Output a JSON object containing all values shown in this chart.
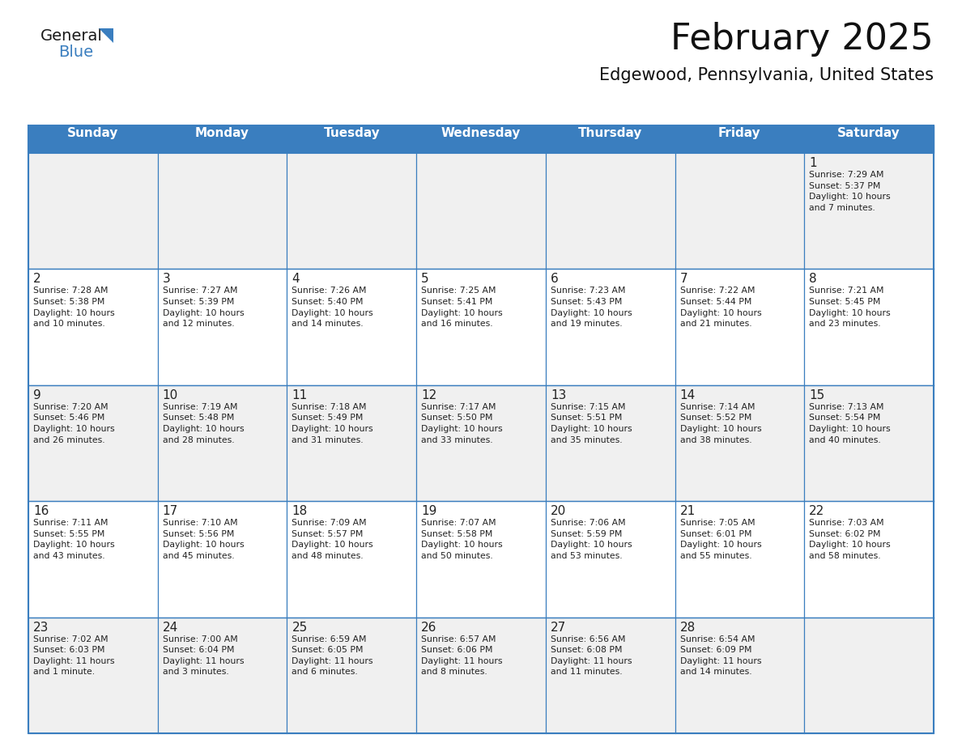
{
  "title": "February 2025",
  "subtitle": "Edgewood, Pennsylvania, United States",
  "header_bg": "#3a7ebf",
  "header_text": "#ffffff",
  "header_days": [
    "Sunday",
    "Monday",
    "Tuesday",
    "Wednesday",
    "Thursday",
    "Friday",
    "Saturday"
  ],
  "cell_bg_light": "#f0f0f0",
  "cell_bg_white": "#ffffff",
  "cell_text": "#222222",
  "border_color": "#3a7ebf",
  "title_fontsize": 32,
  "subtitle_fontsize": 15,
  "day_header_fontsize": 11,
  "cell_number_fontsize": 11,
  "cell_info_fontsize": 7.8,
  "logo_general_fontsize": 14,
  "logo_blue_fontsize": 14,
  "logo_color": "#1a1a1a",
  "logo_blue_color": "#3a7ebf",
  "weeks": [
    [
      {
        "day": "",
        "info": ""
      },
      {
        "day": "",
        "info": ""
      },
      {
        "day": "",
        "info": ""
      },
      {
        "day": "",
        "info": ""
      },
      {
        "day": "",
        "info": ""
      },
      {
        "day": "",
        "info": ""
      },
      {
        "day": "1",
        "info": "Sunrise: 7:29 AM\nSunset: 5:37 PM\nDaylight: 10 hours\nand 7 minutes."
      }
    ],
    [
      {
        "day": "2",
        "info": "Sunrise: 7:28 AM\nSunset: 5:38 PM\nDaylight: 10 hours\nand 10 minutes."
      },
      {
        "day": "3",
        "info": "Sunrise: 7:27 AM\nSunset: 5:39 PM\nDaylight: 10 hours\nand 12 minutes."
      },
      {
        "day": "4",
        "info": "Sunrise: 7:26 AM\nSunset: 5:40 PM\nDaylight: 10 hours\nand 14 minutes."
      },
      {
        "day": "5",
        "info": "Sunrise: 7:25 AM\nSunset: 5:41 PM\nDaylight: 10 hours\nand 16 minutes."
      },
      {
        "day": "6",
        "info": "Sunrise: 7:23 AM\nSunset: 5:43 PM\nDaylight: 10 hours\nand 19 minutes."
      },
      {
        "day": "7",
        "info": "Sunrise: 7:22 AM\nSunset: 5:44 PM\nDaylight: 10 hours\nand 21 minutes."
      },
      {
        "day": "8",
        "info": "Sunrise: 7:21 AM\nSunset: 5:45 PM\nDaylight: 10 hours\nand 23 minutes."
      }
    ],
    [
      {
        "day": "9",
        "info": "Sunrise: 7:20 AM\nSunset: 5:46 PM\nDaylight: 10 hours\nand 26 minutes."
      },
      {
        "day": "10",
        "info": "Sunrise: 7:19 AM\nSunset: 5:48 PM\nDaylight: 10 hours\nand 28 minutes."
      },
      {
        "day": "11",
        "info": "Sunrise: 7:18 AM\nSunset: 5:49 PM\nDaylight: 10 hours\nand 31 minutes."
      },
      {
        "day": "12",
        "info": "Sunrise: 7:17 AM\nSunset: 5:50 PM\nDaylight: 10 hours\nand 33 minutes."
      },
      {
        "day": "13",
        "info": "Sunrise: 7:15 AM\nSunset: 5:51 PM\nDaylight: 10 hours\nand 35 minutes."
      },
      {
        "day": "14",
        "info": "Sunrise: 7:14 AM\nSunset: 5:52 PM\nDaylight: 10 hours\nand 38 minutes."
      },
      {
        "day": "15",
        "info": "Sunrise: 7:13 AM\nSunset: 5:54 PM\nDaylight: 10 hours\nand 40 minutes."
      }
    ],
    [
      {
        "day": "16",
        "info": "Sunrise: 7:11 AM\nSunset: 5:55 PM\nDaylight: 10 hours\nand 43 minutes."
      },
      {
        "day": "17",
        "info": "Sunrise: 7:10 AM\nSunset: 5:56 PM\nDaylight: 10 hours\nand 45 minutes."
      },
      {
        "day": "18",
        "info": "Sunrise: 7:09 AM\nSunset: 5:57 PM\nDaylight: 10 hours\nand 48 minutes."
      },
      {
        "day": "19",
        "info": "Sunrise: 7:07 AM\nSunset: 5:58 PM\nDaylight: 10 hours\nand 50 minutes."
      },
      {
        "day": "20",
        "info": "Sunrise: 7:06 AM\nSunset: 5:59 PM\nDaylight: 10 hours\nand 53 minutes."
      },
      {
        "day": "21",
        "info": "Sunrise: 7:05 AM\nSunset: 6:01 PM\nDaylight: 10 hours\nand 55 minutes."
      },
      {
        "day": "22",
        "info": "Sunrise: 7:03 AM\nSunset: 6:02 PM\nDaylight: 10 hours\nand 58 minutes."
      }
    ],
    [
      {
        "day": "23",
        "info": "Sunrise: 7:02 AM\nSunset: 6:03 PM\nDaylight: 11 hours\nand 1 minute."
      },
      {
        "day": "24",
        "info": "Sunrise: 7:00 AM\nSunset: 6:04 PM\nDaylight: 11 hours\nand 3 minutes."
      },
      {
        "day": "25",
        "info": "Sunrise: 6:59 AM\nSunset: 6:05 PM\nDaylight: 11 hours\nand 6 minutes."
      },
      {
        "day": "26",
        "info": "Sunrise: 6:57 AM\nSunset: 6:06 PM\nDaylight: 11 hours\nand 8 minutes."
      },
      {
        "day": "27",
        "info": "Sunrise: 6:56 AM\nSunset: 6:08 PM\nDaylight: 11 hours\nand 11 minutes."
      },
      {
        "day": "28",
        "info": "Sunrise: 6:54 AM\nSunset: 6:09 PM\nDaylight: 11 hours\nand 14 minutes."
      },
      {
        "day": "",
        "info": ""
      }
    ]
  ]
}
